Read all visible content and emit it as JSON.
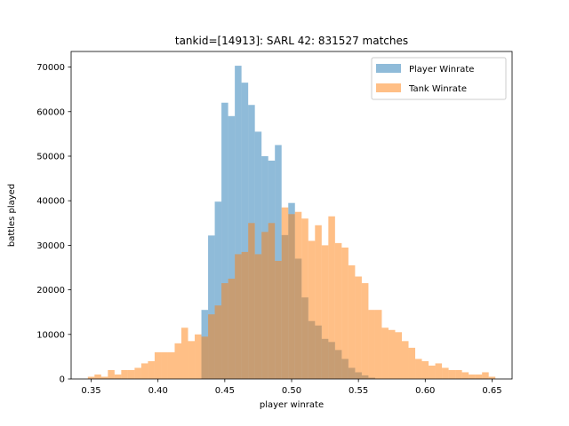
{
  "chart_data": {
    "type": "bar",
    "title": "tankid=[14913]: SARL 42: 831527 matches",
    "xlabel": "player winrate",
    "ylabel": "battles played",
    "xlim": [
      0.335,
      0.665
    ],
    "ylim": [
      0,
      73500
    ],
    "x_ticks": [
      0.35,
      0.4,
      0.45,
      0.5,
      0.55,
      0.6,
      0.65
    ],
    "x_tick_labels": [
      "0.35",
      "0.40",
      "0.45",
      "0.50",
      "0.55",
      "0.60",
      "0.65"
    ],
    "y_ticks": [
      0,
      10000,
      20000,
      30000,
      40000,
      50000,
      60000,
      70000
    ],
    "y_tick_labels": [
      "0",
      "10000",
      "20000",
      "30000",
      "40000",
      "50000",
      "60000",
      "70000"
    ],
    "grid": false,
    "legend_position": "top-right",
    "series": [
      {
        "name": "Player Winrate",
        "color": "#1f77b4",
        "alpha": 0.5,
        "bin_edges": [
          0.4325,
          0.4375,
          0.4425,
          0.4475,
          0.4525,
          0.4575,
          0.4625,
          0.4675,
          0.4725,
          0.4775,
          0.4825,
          0.4875,
          0.4925,
          0.4975,
          0.5025,
          0.5075,
          0.5125,
          0.5175,
          0.5225,
          0.5275,
          0.5325,
          0.5375,
          0.5425,
          0.5475,
          0.5525,
          0.5575,
          0.5625
        ],
        "counts": [
          15500,
          32200,
          39800,
          62000,
          59000,
          70300,
          66500,
          61500,
          55500,
          50000,
          49000,
          52500,
          32300,
          39500,
          27000,
          18300,
          13000,
          12000,
          9000,
          8300,
          6500,
          4500,
          2500,
          1500,
          800,
          300
        ]
      },
      {
        "name": "Tank Winrate",
        "color": "#ff7f0e",
        "alpha": 0.5,
        "bin_edges": [
          0.3475,
          0.3525,
          0.3575,
          0.3625,
          0.3675,
          0.3725,
          0.3775,
          0.3825,
          0.3875,
          0.3925,
          0.3975,
          0.4025,
          0.4075,
          0.4125,
          0.4175,
          0.4225,
          0.4275,
          0.4325,
          0.4375,
          0.4425,
          0.4475,
          0.4525,
          0.4575,
          0.4625,
          0.4675,
          0.4725,
          0.4775,
          0.4825,
          0.4875,
          0.4925,
          0.4975,
          0.5025,
          0.5075,
          0.5125,
          0.5175,
          0.5225,
          0.5275,
          0.5325,
          0.5375,
          0.5425,
          0.5475,
          0.5525,
          0.5575,
          0.5625,
          0.5675,
          0.5725,
          0.5775,
          0.5825,
          0.5875,
          0.5925,
          0.5975,
          0.6025,
          0.6075,
          0.6125,
          0.6175,
          0.6225,
          0.6275,
          0.6325,
          0.6375,
          0.6425,
          0.6475,
          0.6525
        ],
        "counts": [
          500,
          1000,
          500,
          2000,
          1000,
          2000,
          2000,
          2500,
          3500,
          4000,
          6000,
          6000,
          6000,
          8000,
          11500,
          8500,
          10000,
          9500,
          14500,
          16500,
          21500,
          22500,
          28000,
          28500,
          35000,
          28000,
          33000,
          35000,
          26500,
          38500,
          37000,
          37500,
          36000,
          31000,
          34500,
          30000,
          36500,
          30500,
          29500,
          25500,
          23000,
          21500,
          15500,
          15500,
          11500,
          11000,
          10500,
          8500,
          7000,
          4500,
          4000,
          3000,
          3500,
          2500,
          2000,
          2000,
          1500,
          1000,
          1000,
          1500,
          500
        ]
      }
    ]
  }
}
